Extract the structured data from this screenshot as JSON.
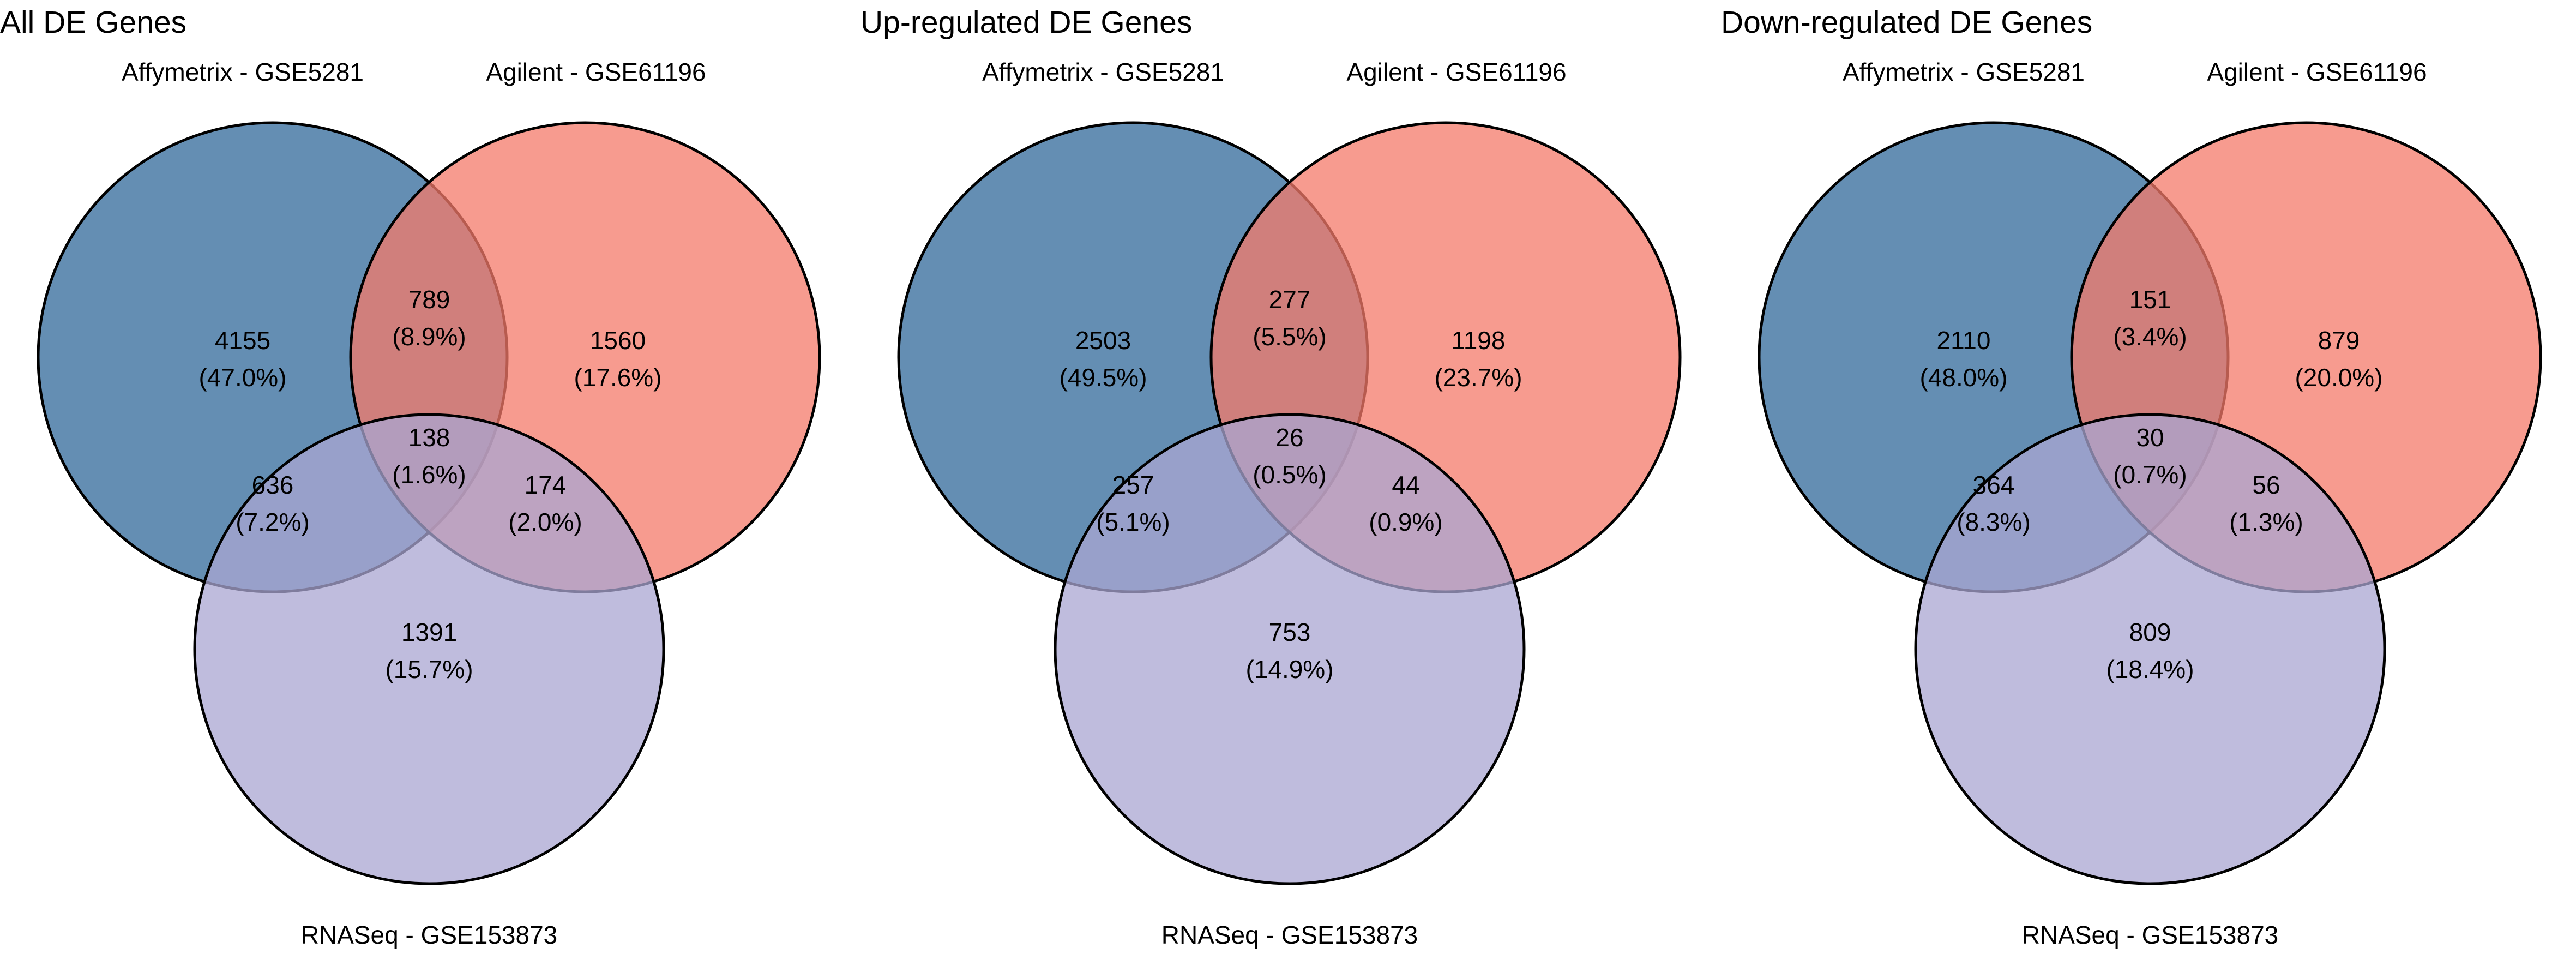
{
  "colors": {
    "affymetrix": "#30689A",
    "agilent": "#F47A6A",
    "rnaseq": "#A9A5D1",
    "stroke": "#000000"
  },
  "panels": [
    {
      "title": "All DE Genes",
      "sets": {
        "affymetrix": "Affymetrix - GSE5281",
        "agilent": "Agilent - GSE61196",
        "rnaseq": "RNASeq - GSE153873"
      },
      "regions": {
        "affy_only": {
          "count": "4155",
          "pct": "(47.0%)"
        },
        "affy_agilent": {
          "count": "789",
          "pct": "(8.9%)"
        },
        "agilent_only": {
          "count": "1560",
          "pct": "(17.6%)"
        },
        "all_three": {
          "count": "138",
          "pct": "(1.6%)"
        },
        "affy_rnaseq": {
          "count": "636",
          "pct": "(7.2%)"
        },
        "agilent_rnaseq": {
          "count": "174",
          "pct": "(2.0%)"
        },
        "rnaseq_only": {
          "count": "1391",
          "pct": "(15.7%)"
        }
      }
    },
    {
      "title": "Up-regulated DE Genes",
      "sets": {
        "affymetrix": "Affymetrix - GSE5281",
        "agilent": "Agilent - GSE61196",
        "rnaseq": "RNASeq - GSE153873"
      },
      "regions": {
        "affy_only": {
          "count": "2503",
          "pct": "(49.5%)"
        },
        "affy_agilent": {
          "count": "277",
          "pct": "(5.5%)"
        },
        "agilent_only": {
          "count": "1198",
          "pct": "(23.7%)"
        },
        "all_three": {
          "count": "26",
          "pct": "(0.5%)"
        },
        "affy_rnaseq": {
          "count": "257",
          "pct": "(5.1%)"
        },
        "agilent_rnaseq": {
          "count": "44",
          "pct": "(0.9%)"
        },
        "rnaseq_only": {
          "count": "753",
          "pct": "(14.9%)"
        }
      }
    },
    {
      "title": "Down-regulated DE Genes",
      "sets": {
        "affymetrix": "Affymetrix - GSE5281",
        "agilent": "Agilent - GSE61196",
        "rnaseq": "RNASeq - GSE153873"
      },
      "regions": {
        "affy_only": {
          "count": "2110",
          "pct": "(48.0%)"
        },
        "affy_agilent": {
          "count": "151",
          "pct": "(3.4%)"
        },
        "agilent_only": {
          "count": "879",
          "pct": "(20.0%)"
        },
        "all_three": {
          "count": "30",
          "pct": "(0.7%)"
        },
        "affy_rnaseq": {
          "count": "364",
          "pct": "(8.3%)"
        },
        "agilent_rnaseq": {
          "count": "56",
          "pct": "(1.3%)"
        },
        "rnaseq_only": {
          "count": "809",
          "pct": "(18.4%)"
        }
      }
    }
  ]
}
